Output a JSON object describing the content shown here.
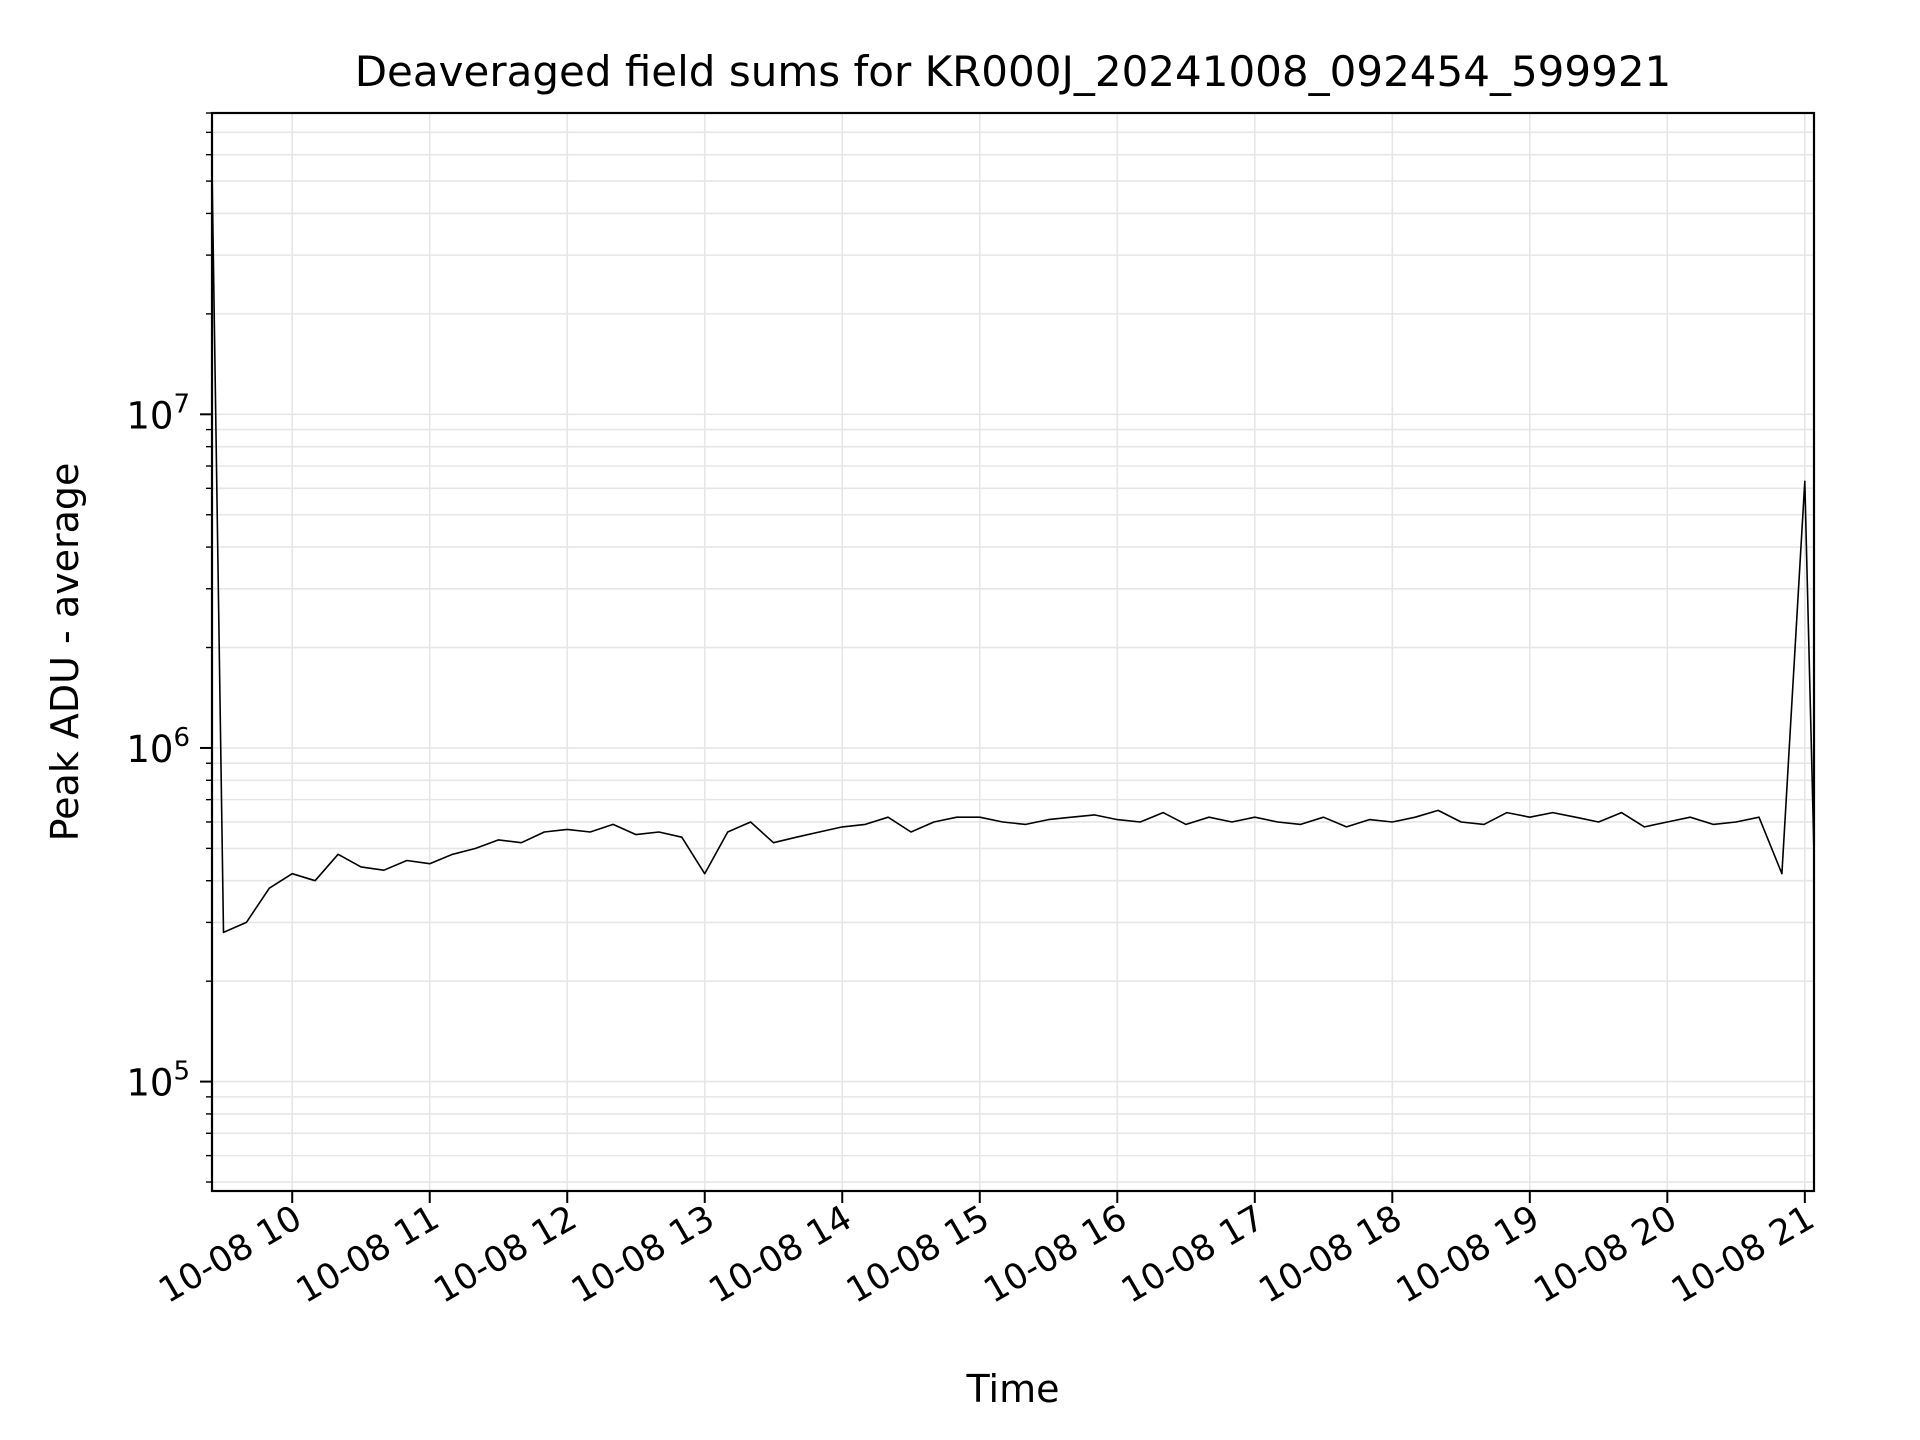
{
  "chart_data": {
    "type": "line",
    "title": "Deaveraged field sums for KR000J_20241008_092454_599921",
    "xlabel": "Time",
    "ylabel": "Peak ADU - average",
    "y_scale": "log",
    "ylim": [
      47000,
      80000000
    ],
    "xlim": [
      "2024-10-08 09:25",
      "2024-10-08 21:04"
    ],
    "x_tick_labels": [
      "10-08 10",
      "10-08 11",
      "10-08 12",
      "10-08 13",
      "10-08 14",
      "10-08 15",
      "10-08 16",
      "10-08 17",
      "10-08 18",
      "10-08 19",
      "10-08 20",
      "10-08 21"
    ],
    "x_ticks": [
      "2024-10-08 10:00",
      "2024-10-08 11:00",
      "2024-10-08 12:00",
      "2024-10-08 13:00",
      "2024-10-08 14:00",
      "2024-10-08 15:00",
      "2024-10-08 16:00",
      "2024-10-08 17:00",
      "2024-10-08 18:00",
      "2024-10-08 19:00",
      "2024-10-08 20:00",
      "2024-10-08 21:00"
    ],
    "y_tick_labels": [
      {
        "base": "10",
        "exp": "5",
        "value": 100000
      },
      {
        "base": "10",
        "exp": "6",
        "value": 1000000
      },
      {
        "base": "10",
        "exp": "7",
        "value": 10000000
      }
    ],
    "grid": true,
    "line_color": "#000000",
    "grid_color": "#e6e6e6",
    "series": [
      {
        "x": [
          "2024-10-08 09:25",
          "2024-10-08 09:30",
          "2024-10-08 09:40",
          "2024-10-08 09:50",
          "2024-10-08 10:00",
          "2024-10-08 10:10",
          "2024-10-08 10:20",
          "2024-10-08 10:30",
          "2024-10-08 10:40",
          "2024-10-08 10:50",
          "2024-10-08 11:00",
          "2024-10-08 11:10",
          "2024-10-08 11:20",
          "2024-10-08 11:30",
          "2024-10-08 11:40",
          "2024-10-08 11:50",
          "2024-10-08 12:00",
          "2024-10-08 12:10",
          "2024-10-08 12:20",
          "2024-10-08 12:30",
          "2024-10-08 12:40",
          "2024-10-08 12:50",
          "2024-10-08 13:00",
          "2024-10-08 13:10",
          "2024-10-08 13:20",
          "2024-10-08 13:30",
          "2024-10-08 13:40",
          "2024-10-08 13:50",
          "2024-10-08 14:00",
          "2024-10-08 14:10",
          "2024-10-08 14:20",
          "2024-10-08 14:30",
          "2024-10-08 14:40",
          "2024-10-08 14:50",
          "2024-10-08 15:00",
          "2024-10-08 15:10",
          "2024-10-08 15:20",
          "2024-10-08 15:30",
          "2024-10-08 15:40",
          "2024-10-08 15:50",
          "2024-10-08 16:00",
          "2024-10-08 16:10",
          "2024-10-08 16:20",
          "2024-10-08 16:30",
          "2024-10-08 16:40",
          "2024-10-08 16:50",
          "2024-10-08 17:00",
          "2024-10-08 17:10",
          "2024-10-08 17:20",
          "2024-10-08 17:30",
          "2024-10-08 17:40",
          "2024-10-08 17:50",
          "2024-10-08 18:00",
          "2024-10-08 18:10",
          "2024-10-08 18:20",
          "2024-10-08 18:30",
          "2024-10-08 18:40",
          "2024-10-08 18:50",
          "2024-10-08 19:00",
          "2024-10-08 19:10",
          "2024-10-08 19:20",
          "2024-10-08 19:30",
          "2024-10-08 19:40",
          "2024-10-08 19:50",
          "2024-10-08 20:00",
          "2024-10-08 20:10",
          "2024-10-08 20:20",
          "2024-10-08 20:30",
          "2024-10-08 20:40",
          "2024-10-08 20:50",
          "2024-10-08 21:00",
          "2024-10-08 21:04"
        ],
        "y": [
          55000000,
          280000,
          300000,
          380000,
          420000,
          400000,
          480000,
          440000,
          430000,
          460000,
          450000,
          480000,
          500000,
          530000,
          520000,
          560000,
          570000,
          560000,
          590000,
          550000,
          560000,
          540000,
          420000,
          560000,
          600000,
          520000,
          540000,
          560000,
          580000,
          590000,
          620000,
          560000,
          600000,
          620000,
          620000,
          600000,
          590000,
          610000,
          620000,
          630000,
          610000,
          600000,
          640000,
          590000,
          620000,
          600000,
          620000,
          600000,
          590000,
          620000,
          580000,
          610000,
          600000,
          620000,
          650000,
          600000,
          590000,
          640000,
          620000,
          640000,
          620000,
          600000,
          640000,
          580000,
          600000,
          620000,
          590000,
          600000,
          620000,
          420000,
          6300000,
          480000
        ]
      }
    ]
  }
}
